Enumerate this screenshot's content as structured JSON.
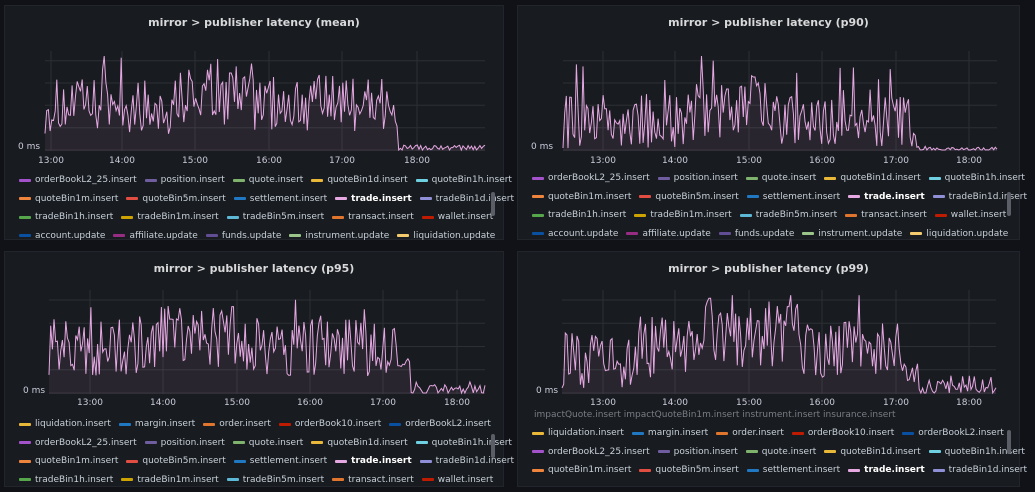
{
  "panels": [
    {
      "title": "mirror > publisher latency (mean)",
      "y_zero_label": "0 ms",
      "x_ticks": [
        "13:00",
        "14:00",
        "15:00",
        "16:00",
        "17:00",
        "18:00"
      ],
      "legend_rows": [
        [
          {
            "label": "orderBookL2_25.insert",
            "color": "#a352cc"
          },
          {
            "label": "position.insert",
            "color": "#705da0"
          },
          {
            "label": "quote.insert",
            "color": "#7eb26d"
          },
          {
            "label": "quoteBin1d.insert",
            "color": "#eab839"
          },
          {
            "label": "quoteBin1h.insert",
            "color": "#6ed0e0"
          }
        ],
        [
          {
            "label": "quoteBin1m.insert",
            "color": "#ef843c"
          },
          {
            "label": "quoteBin5m.insert",
            "color": "#e24d42"
          },
          {
            "label": "settlement.insert",
            "color": "#1f78c1"
          },
          {
            "label": "trade.insert",
            "color": "#e5a8e2",
            "highlight": true
          },
          {
            "label": "tradeBin1d.insert",
            "color": "#8f8fd7"
          }
        ],
        [
          {
            "label": "tradeBin1h.insert",
            "color": "#56a64b"
          },
          {
            "label": "tradeBin1m.insert",
            "color": "#cca300"
          },
          {
            "label": "tradeBin5m.insert",
            "color": "#5cb8d4"
          },
          {
            "label": "transact.insert",
            "color": "#e0752d"
          },
          {
            "label": "wallet.insert",
            "color": "#bf1b00"
          }
        ],
        [
          {
            "label": "account.update",
            "color": "#0a50a1"
          },
          {
            "label": "affiliate.update",
            "color": "#962d82"
          },
          {
            "label": "funds.update",
            "color": "#614d93"
          },
          {
            "label": "instrument.update",
            "color": "#9ac48a"
          },
          {
            "label": "liquidation.update",
            "color": "#f2c96d"
          }
        ]
      ],
      "partial_text": ""
    },
    {
      "title": "mirror > publisher latency (p90)",
      "y_zero_label": "0 ms",
      "x_ticks": [
        "13:00",
        "14:00",
        "15:00",
        "16:00",
        "17:00",
        "18:00"
      ],
      "legend_rows": [
        [
          {
            "label": "orderBookL2_25.insert",
            "color": "#a352cc"
          },
          {
            "label": "position.insert",
            "color": "#705da0"
          },
          {
            "label": "quote.insert",
            "color": "#7eb26d"
          },
          {
            "label": "quoteBin1d.insert",
            "color": "#eab839"
          },
          {
            "label": "quoteBin1h.insert",
            "color": "#6ed0e0"
          }
        ],
        [
          {
            "label": "quoteBin1m.insert",
            "color": "#ef843c"
          },
          {
            "label": "quoteBin5m.insert",
            "color": "#e24d42"
          },
          {
            "label": "settlement.insert",
            "color": "#1f78c1"
          },
          {
            "label": "trade.insert",
            "color": "#e5a8e2",
            "highlight": true
          },
          {
            "label": "tradeBin1d.insert",
            "color": "#8f8fd7"
          }
        ],
        [
          {
            "label": "tradeBin1h.insert",
            "color": "#56a64b"
          },
          {
            "label": "tradeBin1m.insert",
            "color": "#cca300"
          },
          {
            "label": "tradeBin5m.insert",
            "color": "#5cb8d4"
          },
          {
            "label": "transact.insert",
            "color": "#e0752d"
          },
          {
            "label": "wallet.insert",
            "color": "#bf1b00"
          }
        ],
        [
          {
            "label": "account.update",
            "color": "#0a50a1"
          },
          {
            "label": "affiliate.update",
            "color": "#962d82"
          },
          {
            "label": "funds.update",
            "color": "#614d93"
          },
          {
            "label": "instrument.update",
            "color": "#9ac48a"
          },
          {
            "label": "liquidation.update",
            "color": "#f2c96d"
          }
        ]
      ],
      "partial_text": ""
    },
    {
      "title": "mirror > publisher latency (p95)",
      "y_zero_label": "0 ms",
      "x_ticks": [
        "13:00",
        "14:00",
        "15:00",
        "16:00",
        "17:00",
        "18:00"
      ],
      "legend_rows": [
        [
          {
            "label": "liquidation.insert",
            "color": "#eab839"
          },
          {
            "label": "margin.insert",
            "color": "#1f78c1"
          },
          {
            "label": "order.insert",
            "color": "#e0752d"
          },
          {
            "label": "orderBook10.insert",
            "color": "#bf1b00"
          },
          {
            "label": "orderBookL2.insert",
            "color": "#0a50a1"
          }
        ],
        [
          {
            "label": "orderBookL2_25.insert",
            "color": "#a352cc"
          },
          {
            "label": "position.insert",
            "color": "#705da0"
          },
          {
            "label": "quote.insert",
            "color": "#7eb26d"
          },
          {
            "label": "quoteBin1d.insert",
            "color": "#eab839"
          },
          {
            "label": "quoteBin1h.insert",
            "color": "#6ed0e0"
          }
        ],
        [
          {
            "label": "quoteBin1m.insert",
            "color": "#ef843c"
          },
          {
            "label": "quoteBin5m.insert",
            "color": "#e24d42"
          },
          {
            "label": "settlement.insert",
            "color": "#1f78c1"
          },
          {
            "label": "trade.insert",
            "color": "#e5a8e2",
            "highlight": true
          },
          {
            "label": "tradeBin1d.insert",
            "color": "#8f8fd7"
          }
        ],
        [
          {
            "label": "tradeBin1h.insert",
            "color": "#56a64b"
          },
          {
            "label": "tradeBin1m.insert",
            "color": "#cca300"
          },
          {
            "label": "tradeBin5m.insert",
            "color": "#5cb8d4"
          },
          {
            "label": "transact.insert",
            "color": "#e0752d"
          },
          {
            "label": "wallet.insert",
            "color": "#bf1b00"
          }
        ]
      ],
      "partial_text": ""
    },
    {
      "title": "mirror > publisher latency (p99)",
      "y_zero_label": "0 ms",
      "x_ticks": [
        "13:00",
        "14:00",
        "15:00",
        "16:00",
        "17:00",
        "18:00"
      ],
      "legend_rows": [
        [
          {
            "label": "liquidation.insert",
            "color": "#eab839"
          },
          {
            "label": "margin.insert",
            "color": "#1f78c1"
          },
          {
            "label": "order.insert",
            "color": "#e0752d"
          },
          {
            "label": "orderBook10.insert",
            "color": "#bf1b00"
          },
          {
            "label": "orderBookL2.insert",
            "color": "#0a50a1"
          }
        ],
        [
          {
            "label": "orderBookL2_25.insert",
            "color": "#a352cc"
          },
          {
            "label": "position.insert",
            "color": "#705da0"
          },
          {
            "label": "quote.insert",
            "color": "#7eb26d"
          },
          {
            "label": "quoteBin1d.insert",
            "color": "#eab839"
          },
          {
            "label": "quoteBin1h.insert",
            "color": "#6ed0e0"
          }
        ],
        [
          {
            "label": "quoteBin1m.insert",
            "color": "#ef843c"
          },
          {
            "label": "quoteBin5m.insert",
            "color": "#e24d42"
          },
          {
            "label": "settlement.insert",
            "color": "#1f78c1"
          },
          {
            "label": "trade.insert",
            "color": "#e5a8e2",
            "highlight": true
          },
          {
            "label": "tradeBin1d.insert",
            "color": "#8f8fd7"
          }
        ]
      ],
      "partial_text": "impactQuote.insert     impactQuoteBin1m.insert     instrument.insert     insurance.insert"
    }
  ]
}
